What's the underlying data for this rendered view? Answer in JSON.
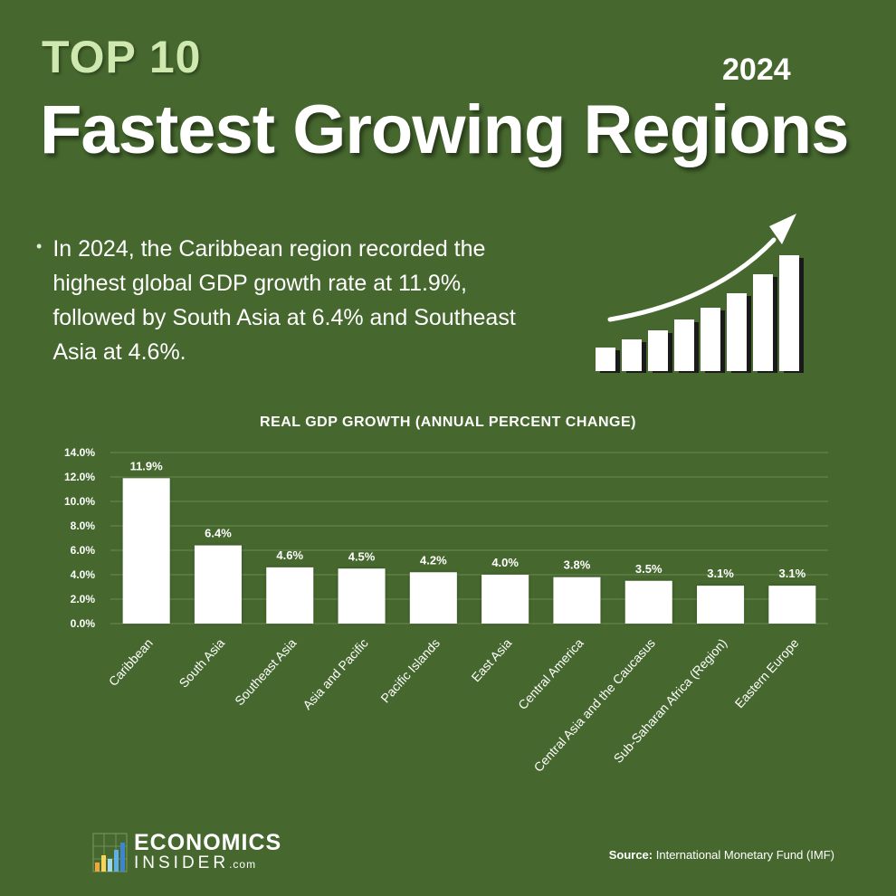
{
  "header": {
    "kicker": "TOP 10",
    "year": "2024",
    "title": "Fastest Growing Regions"
  },
  "summary": "In 2024, the Caribbean region recorded the highest global GDP growth rate at 11.9%, followed by South Asia at 6.4% and Southeast Asia at 4.6%.",
  "icons": {
    "bullet": "bullet-dot",
    "growth": "rising-bar-chart-arrow-icon",
    "logo": "bar-chart-logo-icon"
  },
  "chart_data": {
    "type": "bar",
    "title": "REAL GDP GROWTH (ANNUAL PERCENT CHANGE)",
    "categories": [
      "Caribbean",
      "South Asia",
      "Southeast Asia",
      "Asia and Pacific",
      "Pacific Islands",
      "East Asia",
      "Central America",
      "Central Asia and the Caucasus",
      "Sub-Saharan Africa (Region)",
      "Eastern Europe"
    ],
    "values": [
      11.9,
      6.4,
      4.6,
      4.5,
      4.2,
      4.0,
      3.8,
      3.5,
      3.1,
      3.1
    ],
    "data_labels": [
      "11.9%",
      "6.4%",
      "4.6%",
      "4.5%",
      "4.2%",
      "4.0%",
      "3.8%",
      "3.5%",
      "3.1%",
      "3.1%"
    ],
    "yticks": [
      0,
      2,
      4,
      6,
      8,
      10,
      12,
      14
    ],
    "ytick_labels": [
      "0.0%",
      "2.0%",
      "4.0%",
      "6.0%",
      "8.0%",
      "10.0%",
      "12.0%",
      "14.0%"
    ],
    "ylim": [
      0,
      14
    ],
    "grid": true,
    "xlabel": "",
    "ylabel": ""
  },
  "footer": {
    "brand_name": "ECONOMICS",
    "brand_sub": "INSIDER",
    "brand_suffix": ".com",
    "source_label": "Source:",
    "source_text": "International Monetary Fund (IMF)"
  },
  "colors": {
    "background": "#46682e",
    "bar": "#ffffff",
    "grid": "#6a8a52",
    "kicker": "#cfe8b0"
  }
}
